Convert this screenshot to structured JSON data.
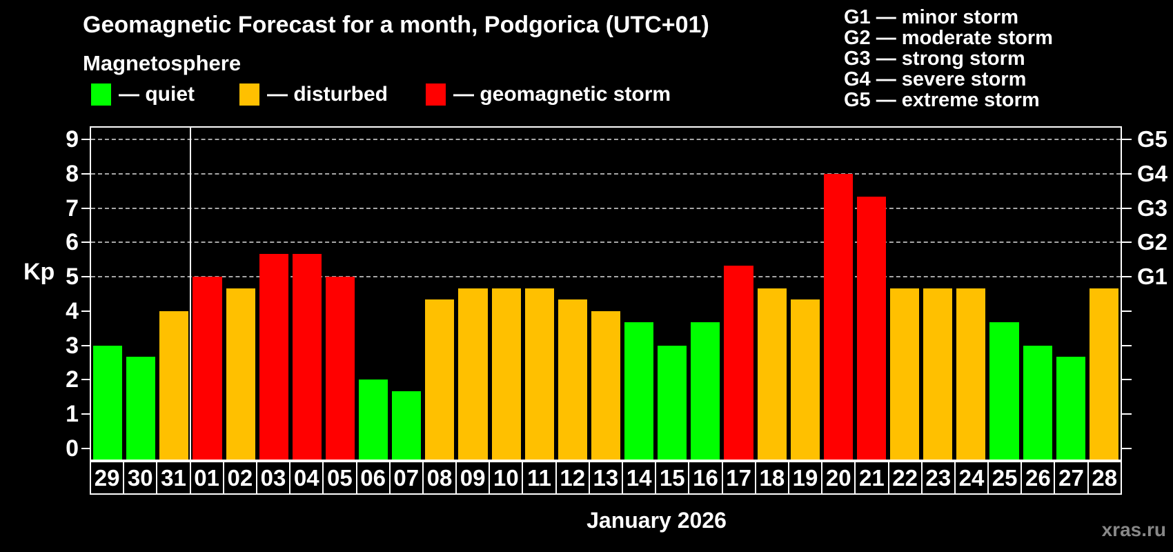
{
  "title": "Geomagnetic Forecast for a month, Podgorica (UTC+01)",
  "subtitle": "Magnetosphere",
  "legend": {
    "items": [
      {
        "name": "quiet",
        "label": "— quiet",
        "color": "#00ff00"
      },
      {
        "name": "disturbed",
        "label": "— disturbed",
        "color": "#ffc000"
      },
      {
        "name": "storm",
        "label": "— geomagnetic storm",
        "color": "#ff0000"
      }
    ]
  },
  "g_legend": {
    "items": [
      "G1 — minor storm",
      "G2 — moderate storm",
      "G3 — strong storm",
      "G4 — severe storm",
      "G5 — extreme storm"
    ]
  },
  "watermark": "xras.ru",
  "chart_data": {
    "type": "bar",
    "title": "Geomagnetic Forecast for a month, Podgorica (UTC+01)",
    "ylabel": "Kp",
    "xlabel": "January 2026",
    "ylim": [
      0,
      9
    ],
    "yticks": [
      0,
      1,
      2,
      3,
      4,
      5,
      6,
      7,
      8,
      9
    ],
    "gridlines": [
      5,
      6,
      7,
      8,
      9
    ],
    "grid_style": "dashed horizontal lines at storm levels only",
    "legend_position": "top",
    "right_axis": [
      {
        "value": 5,
        "label": "G1"
      },
      {
        "value": 6,
        "label": "G2"
      },
      {
        "value": 7,
        "label": "G3"
      },
      {
        "value": 8,
        "label": "G4"
      },
      {
        "value": 9,
        "label": "G5"
      }
    ],
    "categories": [
      "29",
      "30",
      "31",
      "01",
      "02",
      "03",
      "04",
      "05",
      "06",
      "07",
      "08",
      "09",
      "10",
      "11",
      "12",
      "13",
      "14",
      "15",
      "16",
      "17",
      "18",
      "19",
      "20",
      "21",
      "22",
      "23",
      "24",
      "25",
      "26",
      "27",
      "28"
    ],
    "values": [
      3,
      2.67,
      4,
      5,
      4.67,
      5.67,
      5.67,
      5,
      2,
      1.67,
      4.33,
      4.67,
      4.67,
      4.67,
      4.33,
      4,
      3.67,
      3,
      3.67,
      5.33,
      4.67,
      4.33,
      8,
      7.33,
      4.67,
      4.67,
      4.67,
      3.67,
      3,
      2.67,
      4.67
    ],
    "separator_after_index": 2,
    "color_rules": {
      "disturbed_min": 4,
      "storm_min": 5
    },
    "bar_colors": {
      "quiet": "#00ff00",
      "disturbed": "#ffc000",
      "storm": "#ff0000"
    },
    "gridline_color": "#a8a8a8"
  }
}
